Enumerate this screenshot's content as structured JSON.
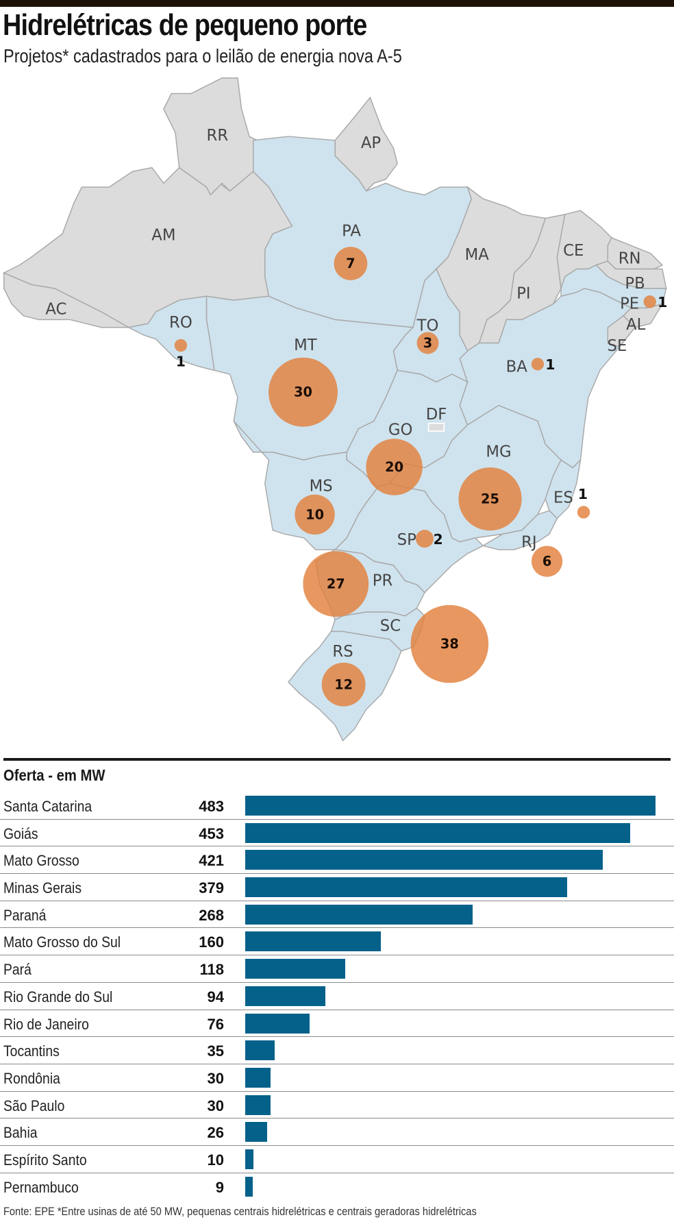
{
  "header": {
    "title": "Hidrelétricas de pequeno porte",
    "subtitle": "Projetos* cadastrados para o leilão de energia nova A-5"
  },
  "map": {
    "highlight_color": "#cfe3ee",
    "other_color": "#dcdcdc",
    "bubble_color": "#e2803c",
    "state_labels": [
      "RR",
      "AP",
      "AM",
      "PA",
      "MA",
      "CE",
      "RN",
      "PB",
      "PE",
      "PI",
      "AL",
      "SE",
      "AC",
      "RO",
      "MT",
      "TO",
      "BA",
      "DF",
      "GO",
      "MG",
      "MS",
      "ES",
      "SP",
      "RJ",
      "PR",
      "SC",
      "RS"
    ],
    "projects": [
      {
        "state": "PA",
        "count": 7
      },
      {
        "state": "RO",
        "count": 1
      },
      {
        "state": "MT",
        "count": 30
      },
      {
        "state": "TO",
        "count": 3
      },
      {
        "state": "BA",
        "count": 1
      },
      {
        "state": "PE",
        "count": 1
      },
      {
        "state": "GO",
        "count": 20
      },
      {
        "state": "MG",
        "count": 25
      },
      {
        "state": "ES",
        "count": 1
      },
      {
        "state": "RJ",
        "count": 6
      },
      {
        "state": "SP",
        "count": 2
      },
      {
        "state": "MS",
        "count": 10
      },
      {
        "state": "PR",
        "count": 27
      },
      {
        "state": "SC",
        "count": 38
      },
      {
        "state": "RS",
        "count": 12
      }
    ]
  },
  "chart_data": {
    "type": "bar",
    "title": "Oferta - em MW",
    "orientation": "horizontal",
    "bar_color": "#03618a",
    "categories": [
      "Santa Catarina",
      "Goiás",
      "Mato Grosso",
      "Minas Gerais",
      "Paraná",
      "Mato Grosso do Sul",
      "Pará",
      "Rio Grande do Sul",
      "Rio de Janeiro",
      "Tocantins",
      "Rondônia",
      "São Paulo",
      "Bahia",
      "Espírito Santo",
      "Pernambuco"
    ],
    "values": [
      483,
      453,
      421,
      379,
      268,
      160,
      118,
      94,
      76,
      35,
      30,
      30,
      26,
      10,
      9
    ],
    "xlim": [
      0,
      483
    ]
  },
  "footer": {
    "source": "Fonte: EPE   *Entre usinas de até 50 MW, pequenas centrais hidrelétricas e centrais geradoras hidrelétricas"
  }
}
